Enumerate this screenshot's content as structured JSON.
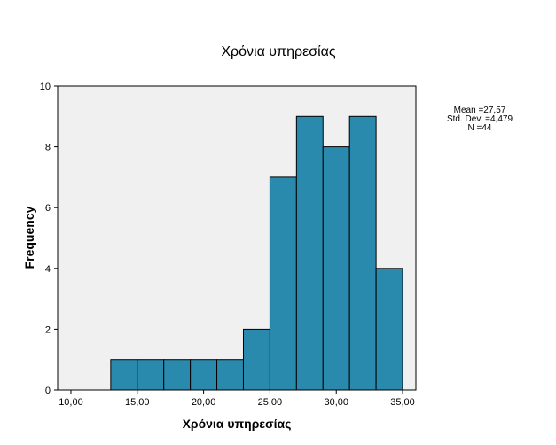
{
  "chart_data": {
    "type": "bar",
    "title": "Χρόνια υπηρεσίας",
    "xlabel": "Χρόνια υπηρεσίας",
    "ylabel": "Frequency",
    "xlim": [
      9,
      36
    ],
    "ylim": [
      0,
      10
    ],
    "x_ticks": [
      "10,00",
      "15,00",
      "20,00",
      "25,00",
      "30,00",
      "35,00"
    ],
    "x_tick_values": [
      10,
      15,
      20,
      25,
      30,
      35
    ],
    "y_ticks": [
      "0",
      "2",
      "4",
      "6",
      "8",
      "10"
    ],
    "y_tick_values": [
      0,
      2,
      4,
      6,
      8,
      10
    ],
    "bins": [
      {
        "start": 13,
        "end": 15,
        "count": 1
      },
      {
        "start": 15,
        "end": 17,
        "count": 1
      },
      {
        "start": 17,
        "end": 19,
        "count": 1
      },
      {
        "start": 19,
        "end": 21,
        "count": 1
      },
      {
        "start": 21,
        "end": 23,
        "count": 1
      },
      {
        "start": 23,
        "end": 25,
        "count": 2
      },
      {
        "start": 25,
        "end": 27,
        "count": 7
      },
      {
        "start": 27,
        "end": 29,
        "count": 9
      },
      {
        "start": 29,
        "end": 31,
        "count": 8
      },
      {
        "start": 31,
        "end": 33,
        "count": 9
      },
      {
        "start": 33,
        "end": 35,
        "count": 4
      }
    ],
    "stats": [
      "Mean =27,57",
      "Std. Dev. =4,479",
      "N =44"
    ],
    "grid": false,
    "legend": "none",
    "bar_color": "#2a8aad",
    "plot_background": "#f0f0f0"
  }
}
